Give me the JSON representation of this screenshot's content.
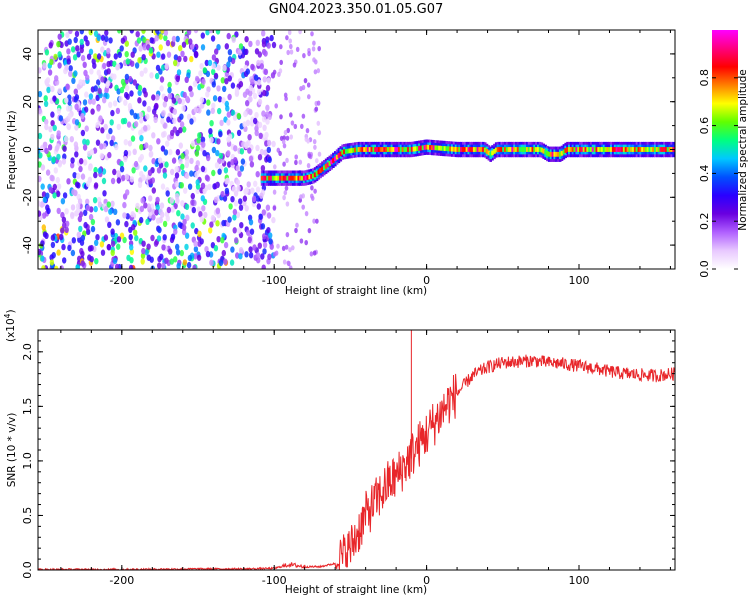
{
  "figure": {
    "title": "GN04.2023.350.01.05.G07"
  },
  "chart_data": [
    {
      "type": "heatmap",
      "xlabel": "Height of straight line (km)",
      "ylabel": "Frequency (Hz)",
      "xlim": [
        -255,
        163
      ],
      "ylim": [
        -50,
        50
      ],
      "x_ticks": [
        -200,
        -100,
        0,
        100
      ],
      "y_ticks": [
        -40,
        -20,
        0,
        20,
        40
      ],
      "colorbar": {
        "label": "Normalized spectral amplitude",
        "range": [
          0,
          1
        ],
        "ticks": [
          "0.0",
          "0.2",
          "0.4",
          "0.6",
          "0.8"
        ],
        "tick_values": [
          0,
          0.2,
          0.4,
          0.6,
          0.8
        ],
        "colors": [
          "#ffffff",
          "#e8c8ff",
          "#b060ff",
          "#6a00e0",
          "#2a00ff",
          "#0050ff",
          "#00c8ff",
          "#00ff80",
          "#60ff00",
          "#ffff00",
          "#ff8000",
          "#ff0000",
          "#ff0080",
          "#ff00ff"
        ]
      },
      "signal_track": [
        [
          -108,
          -12
        ],
        [
          -80,
          -12
        ],
        [
          -74,
          -11
        ],
        [
          -62,
          -5
        ],
        [
          -55,
          -1
        ],
        [
          -45,
          0
        ],
        [
          -20,
          0
        ],
        [
          -10,
          0
        ],
        [
          0,
          1
        ],
        [
          20,
          0
        ],
        [
          38,
          0
        ],
        [
          42,
          -2
        ],
        [
          46,
          0
        ],
        [
          75,
          0
        ],
        [
          80,
          -2
        ],
        [
          88,
          -2
        ],
        [
          92,
          0
        ],
        [
          163,
          0
        ]
      ]
    },
    {
      "type": "line",
      "xlabel": "Height of straight line (km)",
      "ylabel": "SNR (10 * v/v)",
      "ylabel_exponent": "(x10",
      "ylabel_exponent_power": "4",
      "ylabel_exponent_close": ")",
      "xlim": [
        -255,
        163
      ],
      "ylim": [
        0,
        2.2
      ],
      "x_ticks": [
        -200,
        -100,
        0,
        100
      ],
      "y_ticks": [
        0.0,
        0.5,
        1.0,
        1.5,
        2.0
      ],
      "y_tick_labels": [
        "0.0",
        "0.5",
        "1.0",
        "1.5",
        "2.0"
      ],
      "color": "#e8262a",
      "series": [
        {
          "x": [
            -255,
            -200,
            -150,
            -120,
            -100,
            -90,
            -80,
            -70,
            -60,
            -55,
            -50,
            -45,
            -40,
            -35,
            -30,
            -25,
            -20,
            -15,
            -10,
            -5,
            0,
            5,
            10,
            15,
            20,
            25,
            30,
            35,
            40,
            50,
            60,
            70,
            80,
            90,
            100,
            110,
            120,
            130,
            140,
            150,
            163
          ],
          "y": [
            0.005,
            0.005,
            0.01,
            0.01,
            0.015,
            0.05,
            0.03,
            0.03,
            0.06,
            0.12,
            0.2,
            0.35,
            0.5,
            0.6,
            0.7,
            0.8,
            0.85,
            0.95,
            1.05,
            1.15,
            1.25,
            1.35,
            1.45,
            1.55,
            1.62,
            1.7,
            1.78,
            1.82,
            1.86,
            1.9,
            1.91,
            1.92,
            1.9,
            1.89,
            1.87,
            1.85,
            1.82,
            1.8,
            1.79,
            1.78,
            1.8
          ]
        }
      ],
      "spike": {
        "x": -10,
        "y": 2.2
      }
    }
  ]
}
